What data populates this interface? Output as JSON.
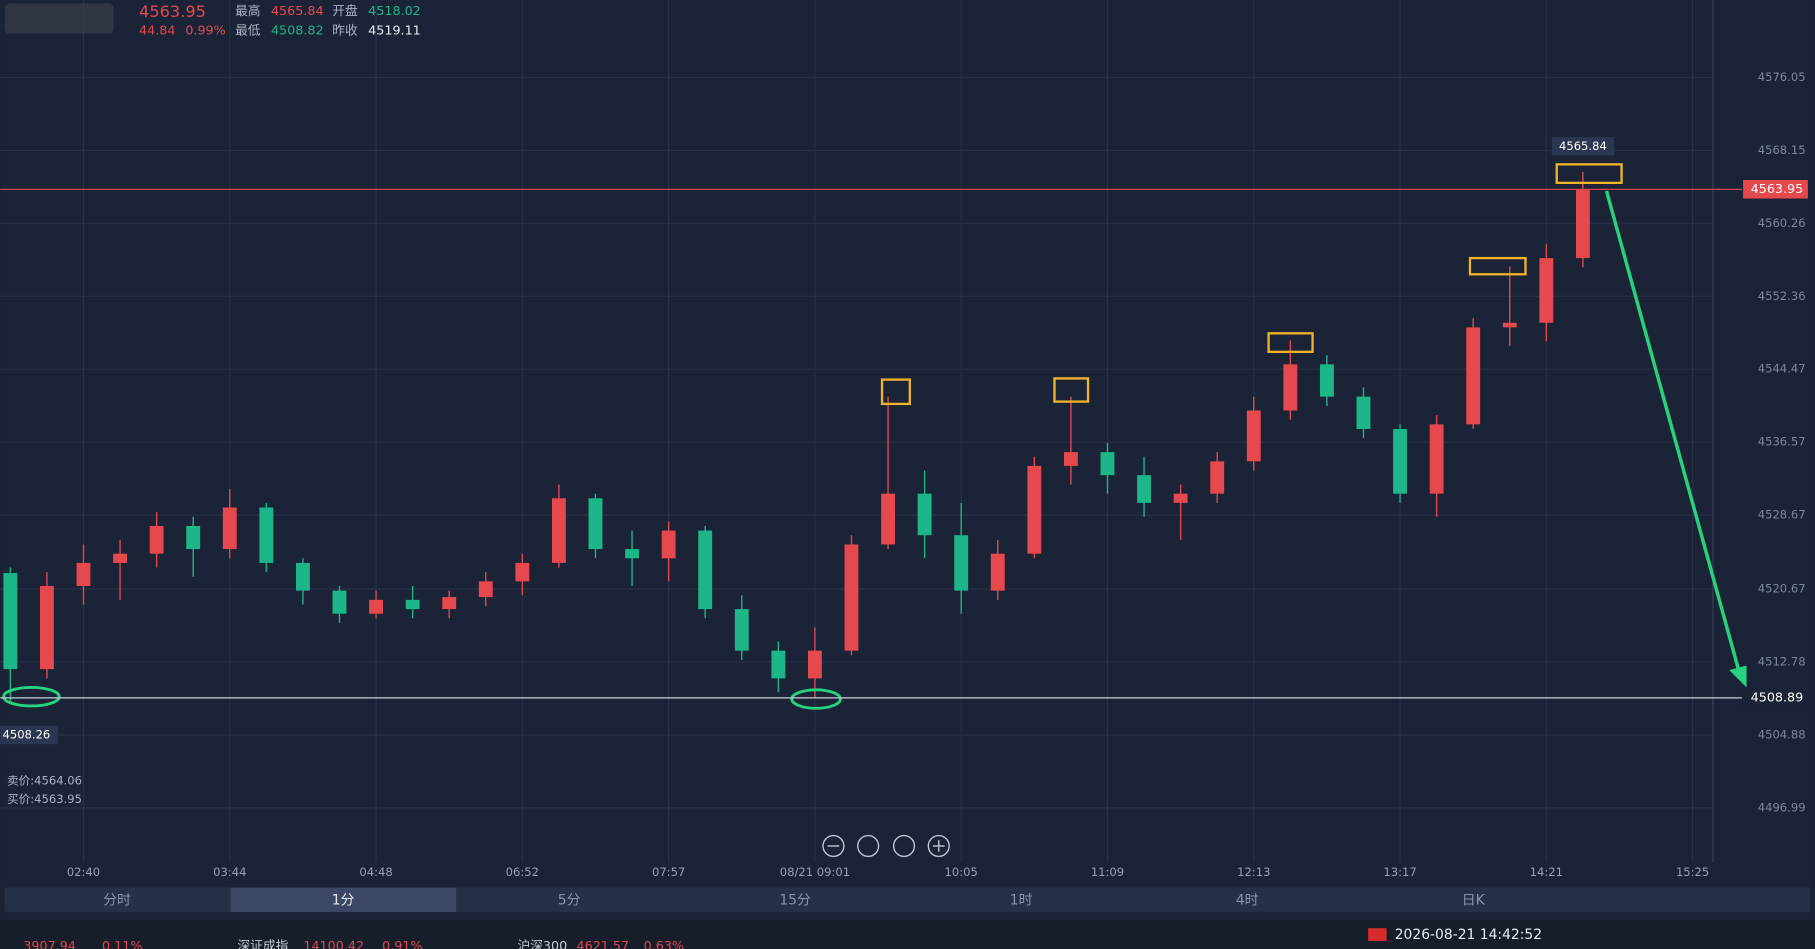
{
  "quote": {
    "last": 4563.95,
    "change": 44.84,
    "change_pct": "0.99%",
    "high_label": "最高",
    "high": 4565.84,
    "open_label": "开盘",
    "open": 4518.02,
    "low_label": "最低",
    "low": 4508.82,
    "prev_close_label": "昨收",
    "prev_close": 4519.11,
    "ask": "卖价:4564.06",
    "bid": "买价:4563.95"
  },
  "chart_data": {
    "type": "candlestick",
    "up_color": "#e5484d",
    "down_color": "#1db58a",
    "categories": [
      null,
      null,
      "02:40",
      null,
      null,
      null,
      "03:44",
      null,
      null,
      null,
      "04:48",
      null,
      null,
      null,
      "06:52",
      null,
      null,
      null,
      "07:57",
      null,
      null,
      null,
      "08/21 09:01",
      null,
      null,
      null,
      "10:05",
      null,
      null,
      null,
      "11:09",
      null,
      null,
      null,
      "12:13",
      null,
      null,
      null,
      "13:17",
      null,
      null,
      null,
      "14:21",
      null,
      null,
      null,
      "15:25"
    ],
    "open": [
      4522.4,
      4512.0,
      4521.0,
      4523.5,
      4524.5,
      4527.5,
      4525.0,
      4529.5,
      4523.5,
      4520.5,
      4518.0,
      4519.5,
      4518.5,
      4519.8,
      4521.5,
      4523.5,
      4530.5,
      4525.0,
      4524.0,
      4527.0,
      4518.5,
      4514.0,
      4511.0,
      4514.0,
      4525.5,
      4531.0,
      4526.5,
      4520.5,
      4524.5,
      4534.0,
      4535.5,
      4533.0,
      4530.0,
      4531.0,
      4534.5,
      4540.0,
      4545.0,
      4541.5,
      4538.0,
      4531.0,
      4538.5,
      4549.0,
      4549.5,
      4556.5,
      null,
      null,
      null
    ],
    "high": [
      4523.0,
      4522.5,
      4525.5,
      4526.0,
      4529.0,
      4528.5,
      4531.5,
      4530.0,
      4524.0,
      4521.0,
      4520.5,
      4521.0,
      4520.5,
      4522.5,
      4524.5,
      4532.0,
      4531.0,
      4527.0,
      4528.0,
      4527.5,
      4520.0,
      4515.0,
      4516.5,
      4526.5,
      4541.5,
      4533.5,
      4530.0,
      4526.0,
      4535.0,
      4541.5,
      4536.5,
      4535.0,
      4532.0,
      4535.5,
      4541.5,
      4547.6,
      4546.0,
      4542.5,
      4538.5,
      4539.5,
      4550.0,
      4555.6,
      4558.0,
      4565.84,
      null,
      null,
      null
    ],
    "low": [
      4508.26,
      4511.0,
      4519.0,
      4519.5,
      4523.0,
      4522.0,
      4524.0,
      4522.5,
      4519.0,
      4517.0,
      4517.5,
      4517.5,
      4517.5,
      4518.8,
      4520.0,
      4523.0,
      4524.0,
      4521.0,
      4521.5,
      4517.5,
      4513.0,
      4509.5,
      4508.82,
      4513.5,
      4525.0,
      4524.0,
      4518.0,
      4519.5,
      4524.0,
      4532.0,
      4531.0,
      4528.5,
      4526.0,
      4530.0,
      4533.5,
      4539.0,
      4540.5,
      4537.0,
      4530.0,
      4528.5,
      4538.0,
      4547.0,
      4547.5,
      4555.5,
      null,
      null,
      null
    ],
    "close": [
      4512.0,
      4521.0,
      4523.5,
      4524.5,
      4527.5,
      4525.0,
      4529.5,
      4523.5,
      4520.5,
      4518.0,
      4519.5,
      4518.5,
      4519.8,
      4521.5,
      4523.5,
      4530.5,
      4525.0,
      4524.0,
      4527.0,
      4518.5,
      4514.0,
      4511.0,
      4514.0,
      4525.5,
      4531.0,
      4526.5,
      4520.5,
      4524.5,
      4534.0,
      4535.5,
      4533.0,
      4530.0,
      4531.0,
      4534.5,
      4540.0,
      4545.0,
      4541.5,
      4538.0,
      4531.0,
      4538.5,
      4549.0,
      4549.5,
      4556.5,
      4563.95,
      null,
      null,
      null
    ],
    "ylim": [
      4491.1,
      4584.44
    ],
    "yticks": [
      4576.05,
      4568.15,
      4560.26,
      4552.36,
      4544.47,
      4536.57,
      4528.67,
      4520.67,
      4512.78,
      4504.88,
      4496.99
    ],
    "grid": true,
    "price_lines": [
      {
        "value": 4563.95,
        "color": "#e5484d"
      },
      {
        "value": 4508.89,
        "color": "#c9ced8"
      }
    ]
  },
  "tabs": [
    "分时",
    "1分",
    "5分",
    "15分",
    "1时",
    "4时",
    "日K"
  ],
  "status": {
    "datetime": "2026-08-21 14:42:52"
  },
  "ticker": [
    "3907.94",
    "0.11%",
    "深证成指",
    "14100.42",
    "0.91%",
    "沪深300",
    "4621.57",
    "0.63%"
  ]
}
